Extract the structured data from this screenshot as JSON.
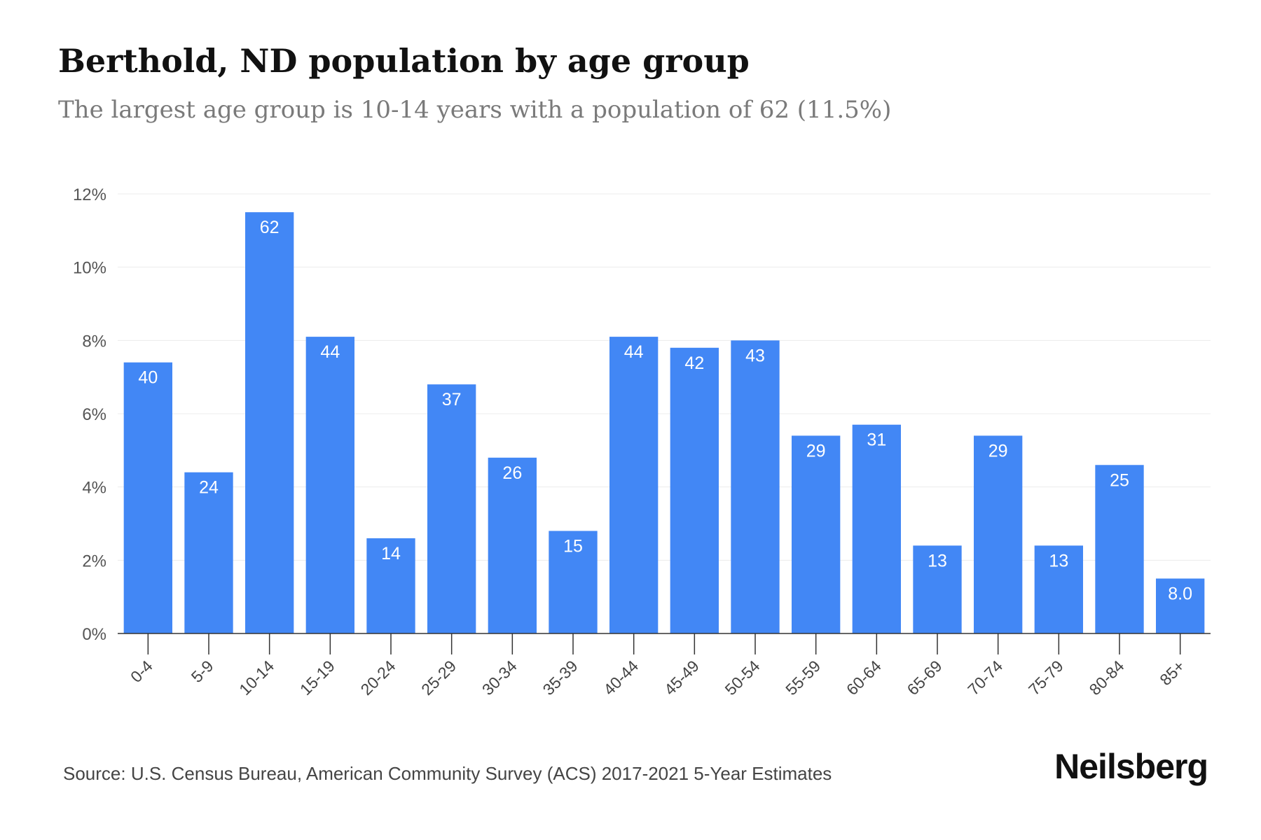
{
  "title": "Berthold, ND population by age group",
  "subtitle": "The largest age group is 10-14 years with a population of 62 (11.5%)",
  "source": "Source: U.S. Census Bureau, American Community Survey (ACS) 2017-2021 5-Year Estimates",
  "brand": "Neilsberg",
  "colors": {
    "bar": "#4287f5",
    "grid": "#ececec",
    "axis": "#333333",
    "bar_label": "#ffffff"
  },
  "chart_data": {
    "type": "bar",
    "categories": [
      "0-4",
      "5-9",
      "10-14",
      "15-19",
      "20-24",
      "25-29",
      "30-34",
      "35-39",
      "40-44",
      "45-49",
      "50-54",
      "55-59",
      "60-64",
      "65-69",
      "70-74",
      "75-79",
      "80-84",
      "85+"
    ],
    "values": [
      7.4,
      4.4,
      11.5,
      8.1,
      2.6,
      6.8,
      4.8,
      2.8,
      8.1,
      7.8,
      8.0,
      5.4,
      5.7,
      2.4,
      5.4,
      2.4,
      4.6,
      1.5
    ],
    "data_labels": [
      "40",
      "24",
      "62",
      "44",
      "14",
      "37",
      "26",
      "15",
      "44",
      "42",
      "43",
      "29",
      "31",
      "13",
      "29",
      "13",
      "25",
      "8.0"
    ],
    "yticks": [
      "0%",
      "2%",
      "4%",
      "6%",
      "8%",
      "10%",
      "12%"
    ],
    "ylim": [
      0,
      12
    ],
    "grid": true
  }
}
